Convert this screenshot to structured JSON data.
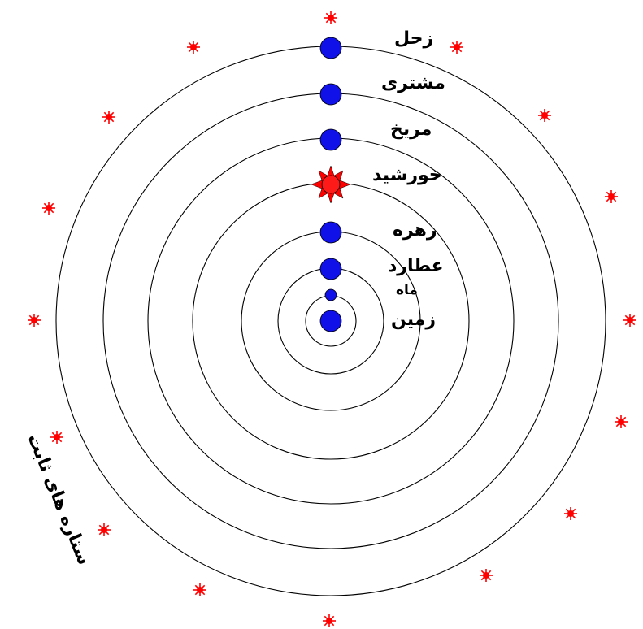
{
  "colors": {
    "planet": "#1010e8",
    "sun": "#ff0000",
    "star": "#ff0000",
    "orbit": "#000000"
  },
  "bodies": [
    {
      "id": "earth",
      "label": "زمین",
      "kind": "planet"
    },
    {
      "id": "moon",
      "label": "ماه",
      "kind": "planet"
    },
    {
      "id": "mercury",
      "label": "عطارد",
      "kind": "planet"
    },
    {
      "id": "venus",
      "label": "زهره",
      "kind": "planet"
    },
    {
      "id": "sun",
      "label": "خورشید",
      "kind": "sun"
    },
    {
      "id": "mars",
      "label": "مریخ",
      "kind": "planet"
    },
    {
      "id": "jupiter",
      "label": "مشتری",
      "kind": "planet"
    },
    {
      "id": "saturn",
      "label": "زحل",
      "kind": "planet"
    }
  ],
  "fixed_stars_label": "ستاره های ثابت",
  "fixed_star_icon": "red-star-icon"
}
